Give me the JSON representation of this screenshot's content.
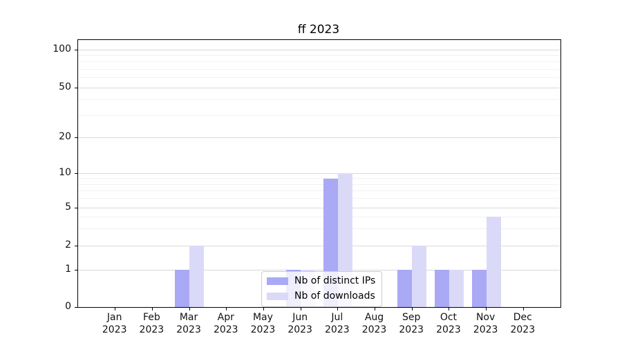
{
  "chart_data": {
    "type": "bar",
    "title": "ff 2023",
    "categories": [
      "Jan",
      "Feb",
      "Mar",
      "Apr",
      "May",
      "Jun",
      "Jul",
      "Aug",
      "Sep",
      "Oct",
      "Nov",
      "Dec"
    ],
    "year_label": "2023",
    "series": [
      {
        "name": "Nb of distinct IPs",
        "color": "#a9a9f5",
        "values": [
          0,
          0,
          1,
          0,
          0,
          1,
          9,
          0,
          1,
          1,
          1,
          0
        ]
      },
      {
        "name": "Nb of downloads",
        "color": "#dadaf8",
        "values": [
          0,
          0,
          2,
          0,
          0,
          1,
          10,
          0,
          2,
          1,
          4,
          0
        ]
      }
    ],
    "y_axis": {
      "scale": "symlog",
      "major_ticks": [
        0,
        1,
        2,
        5,
        10,
        20,
        50,
        100
      ],
      "minor_ticks": [
        3,
        4,
        6,
        7,
        8,
        9,
        30,
        40,
        60,
        70,
        80,
        90
      ],
      "range": [
        0,
        130
      ]
    },
    "x_axis": {
      "tick_label_line2": "2023"
    },
    "grid": "horizontal, major and minor",
    "legend": {
      "position": "lower center",
      "frame": true
    },
    "colors": {
      "background": "#ffffff",
      "major_grid": "#d9d9d9",
      "minor_grid": "#f1f1f4",
      "axis": "#000000"
    }
  }
}
